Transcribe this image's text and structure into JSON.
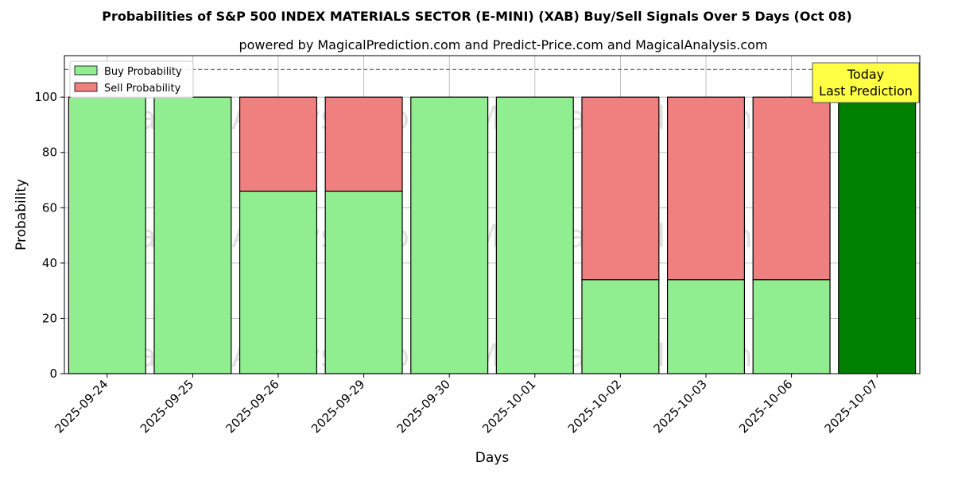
{
  "chart_data": {
    "type": "bar",
    "stacked": true,
    "title": "Probabilities of S&P 500 INDEX MATERIALS SECTOR (E-MINI) (XAB) Buy/Sell Signals Over 5 Days (Oct 08)",
    "subtitle": "powered by MagicalPrediction.com and Predict-Price.com and MagicalAnalysis.com",
    "xlabel": "Days",
    "ylabel": "Probability",
    "ylim": [
      0,
      115
    ],
    "yticks": [
      0,
      20,
      40,
      60,
      80,
      100
    ],
    "grid": true,
    "legend_position": "top-left",
    "reference_line": 110,
    "categories": [
      "2025-09-24",
      "2025-09-25",
      "2025-09-26",
      "2025-09-29",
      "2025-09-30",
      "2025-10-01",
      "2025-10-02",
      "2025-10-03",
      "2025-10-06",
      "2025-10-07"
    ],
    "series": [
      {
        "name": "Buy Probability",
        "color": "#90ee90",
        "values": [
          100,
          100,
          66,
          66,
          100,
          100,
          34,
          34,
          34,
          100
        ]
      },
      {
        "name": "Sell Probability",
        "color": "#f08080",
        "values": [
          0,
          0,
          34,
          34,
          0,
          0,
          66,
          66,
          66,
          0
        ]
      }
    ],
    "highlight": {
      "index": 9,
      "color": "#008000"
    },
    "annotation": {
      "lines": [
        "Today",
        "Last Prediction"
      ],
      "background": "#ffff44"
    },
    "watermarks": [
      "MagicalAnalysis.com",
      "MagicalPrediction.com"
    ]
  }
}
